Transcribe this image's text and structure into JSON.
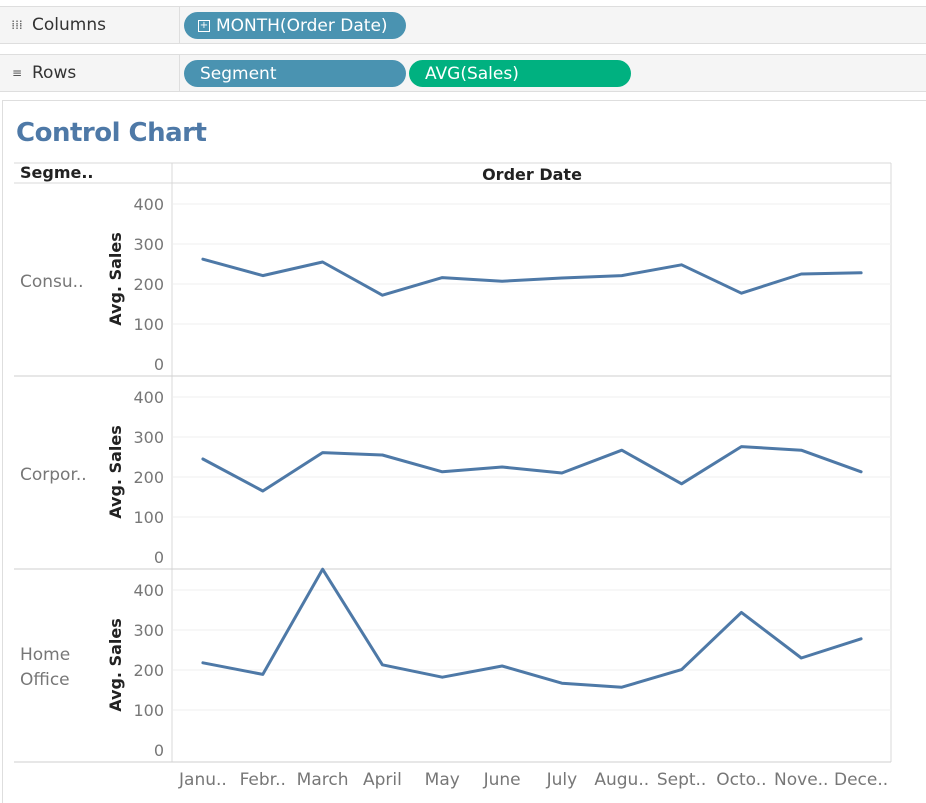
{
  "shelves": {
    "columns": {
      "label": "Columns",
      "icon": "columns-icon",
      "pills": [
        {
          "label": "MONTH(Order Date)",
          "color": "#4a93b1",
          "expandable": true
        }
      ]
    },
    "rows": {
      "label": "Rows",
      "icon": "rows-icon",
      "pills": [
        {
          "label": "Segment",
          "color": "#4a93b1"
        },
        {
          "label": "AVG(Sales)",
          "color": "#00b180"
        }
      ]
    }
  },
  "colors": {
    "line": "#4e79a7",
    "title": "#4e79a7",
    "dimension_pill": "#4a93b1",
    "measure_pill": "#00b180"
  },
  "chart_data": {
    "type": "line",
    "title": "Control Chart",
    "row_header_label": "Segme..",
    "column_header_label": "Order Date",
    "xlabel": "",
    "ylabel": "Avg. Sales",
    "ylim": [
      0,
      470
    ],
    "yticks": [
      0,
      100,
      200,
      300,
      400
    ],
    "grid": true,
    "categories": [
      "Janu..",
      "Febr..",
      "March",
      "April",
      "May",
      "June",
      "July",
      "Augu..",
      "Sept..",
      "Octo..",
      "Nove..",
      "Dece.."
    ],
    "series": [
      {
        "name": "Consu..",
        "values": [
          262,
          221,
          255,
          172,
          216,
          207,
          215,
          221,
          248,
          177,
          225,
          228
        ]
      },
      {
        "name": "Corpor..",
        "values": [
          245,
          165,
          261,
          255,
          213,
          225,
          210,
          267,
          183,
          276,
          267,
          213
        ]
      },
      {
        "name": "Home Office",
        "values": [
          218,
          189,
          452,
          213,
          182,
          210,
          167,
          157,
          201,
          344,
          230,
          278
        ]
      }
    ]
  }
}
